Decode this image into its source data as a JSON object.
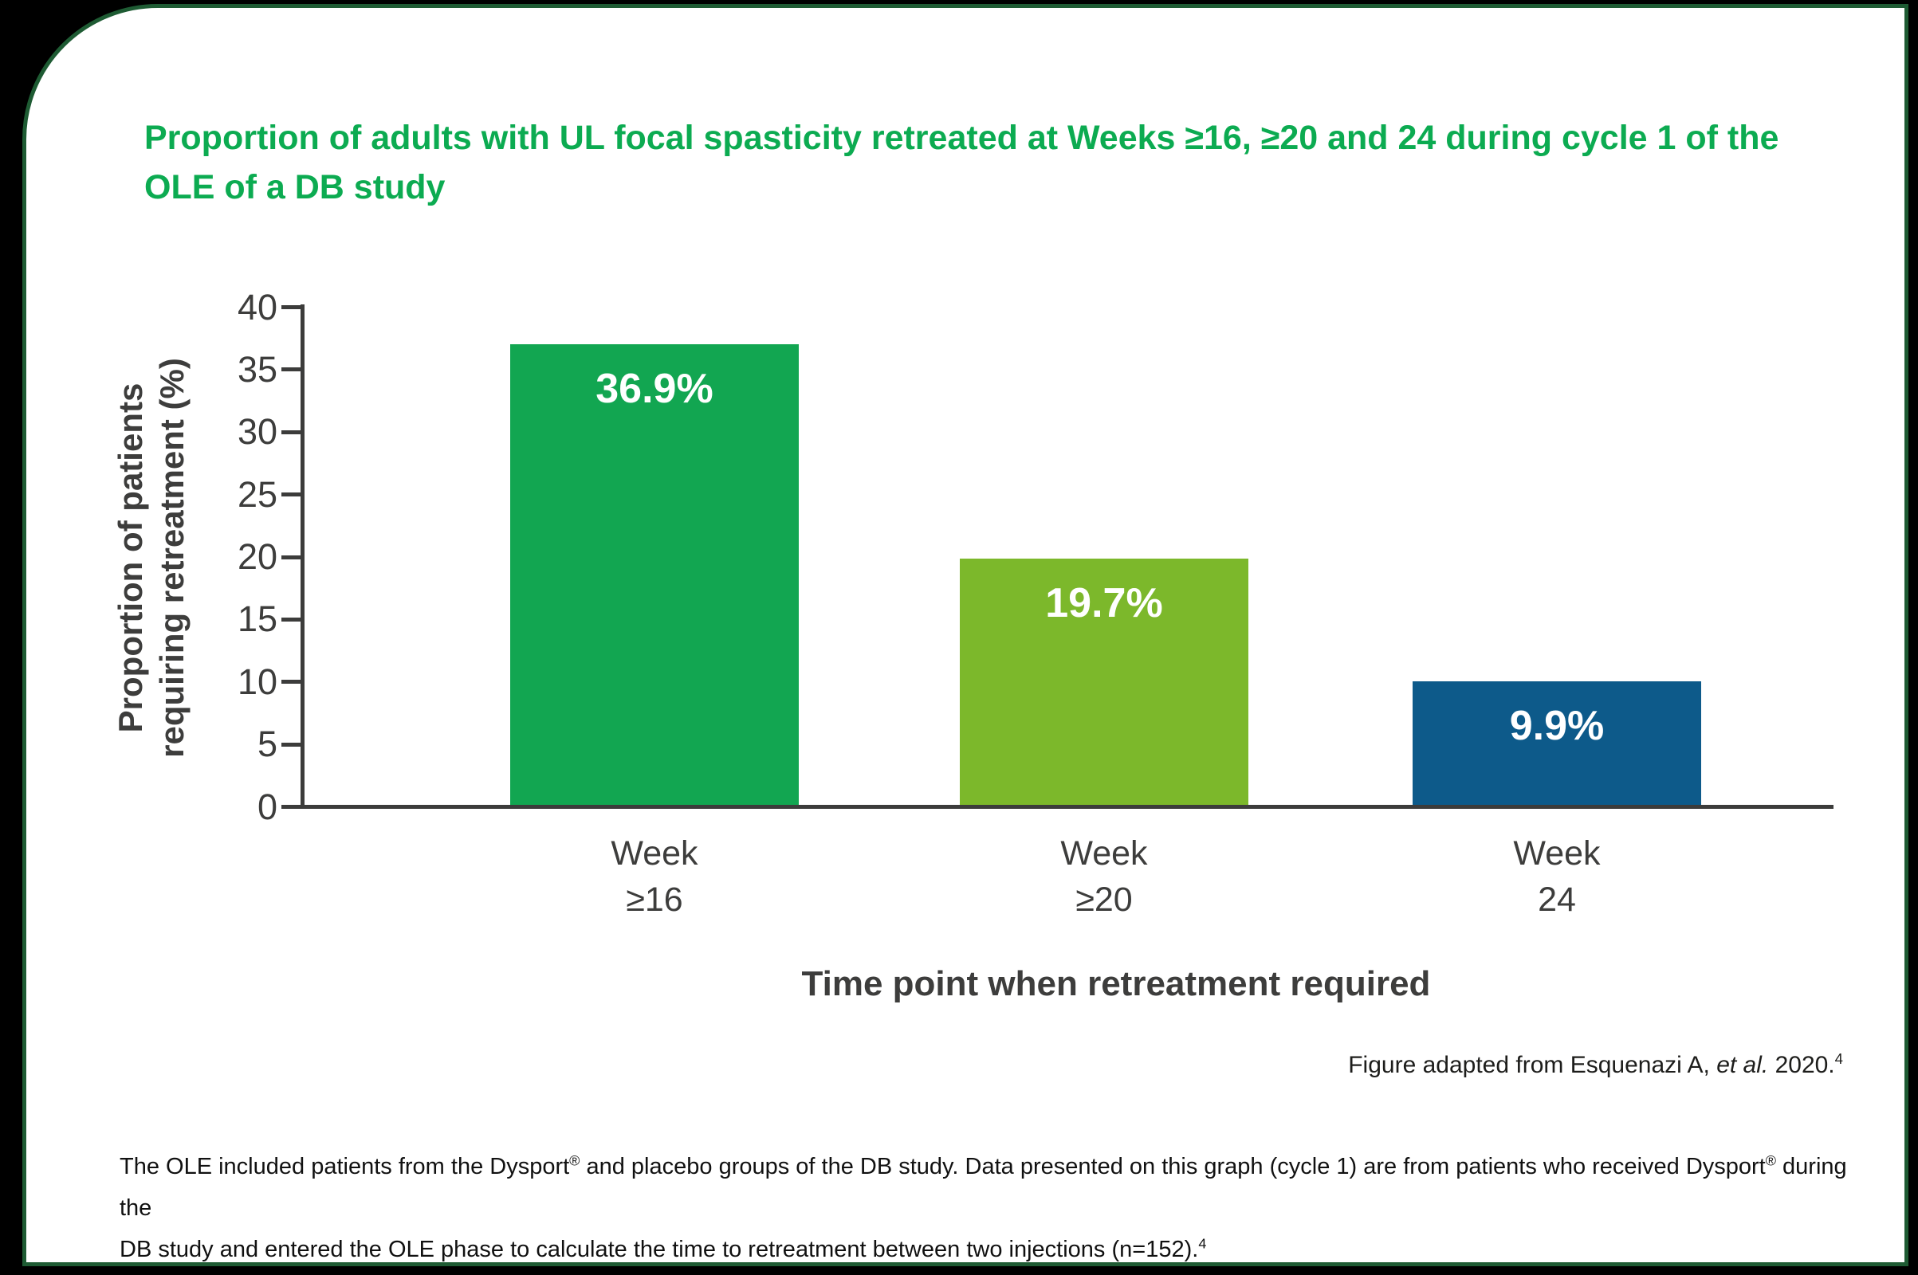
{
  "page_title": {
    "line1": "Proportion of adults with UL focal spasticity retreated at Weeks ≥16, ≥20 and 24 during cycle 1 of the",
    "line2": "OLE of a DB study"
  },
  "chart_data": {
    "type": "bar",
    "title": "Proportion of adults with UL focal spasticity retreated at Weeks ≥16, ≥20 and 24 during cycle 1 of the OLE of a DB study",
    "categories": [
      "Week ≥16",
      "Week ≥20",
      "Week 24"
    ],
    "values": [
      36.9,
      19.7,
      9.9
    ],
    "bar_labels": [
      "36.9%",
      "19.7%",
      "9.9%"
    ],
    "bar_colors": [
      "#12A651",
      "#7CB82B",
      "#0D5A8A"
    ],
    "xlabel": "Time point when retreatment required",
    "ylabel": "Proportion of patients requiring retreatment (%)",
    "ylabel_lines": [
      "Proportion of patients",
      "requiring retreatment (%)"
    ],
    "ylim": [
      0,
      40
    ],
    "y_ticks": [
      0,
      5,
      10,
      15,
      20,
      25,
      30,
      35,
      40
    ],
    "grid": false,
    "legend": false,
    "value_labels_inside_bars": true
  },
  "caption": {
    "prefix": "Figure adapted from Esquenazi A, ",
    "italic": "et al.",
    "suffix": " 2020.",
    "sup": "4"
  },
  "footnote": {
    "part1": "The OLE included patients from the Dysport",
    "sup1": "®",
    "part2": " and placebo groups of the DB study. Data presented on this graph (cycle 1) are from patients who received Dysport",
    "sup2": "®",
    "part3": " during the",
    "part4": "DB study and entered the OLE phase to calculate the time to retreatment between two injections (n=152).",
    "sup3": "4"
  },
  "colors": {
    "title_green": "#0CAB51",
    "border_green": "#1E5B33",
    "axis_gray": "#3C3C3B",
    "label_gray": "#3D3D3C",
    "background": "#000000",
    "card_background": "#ffffff"
  }
}
